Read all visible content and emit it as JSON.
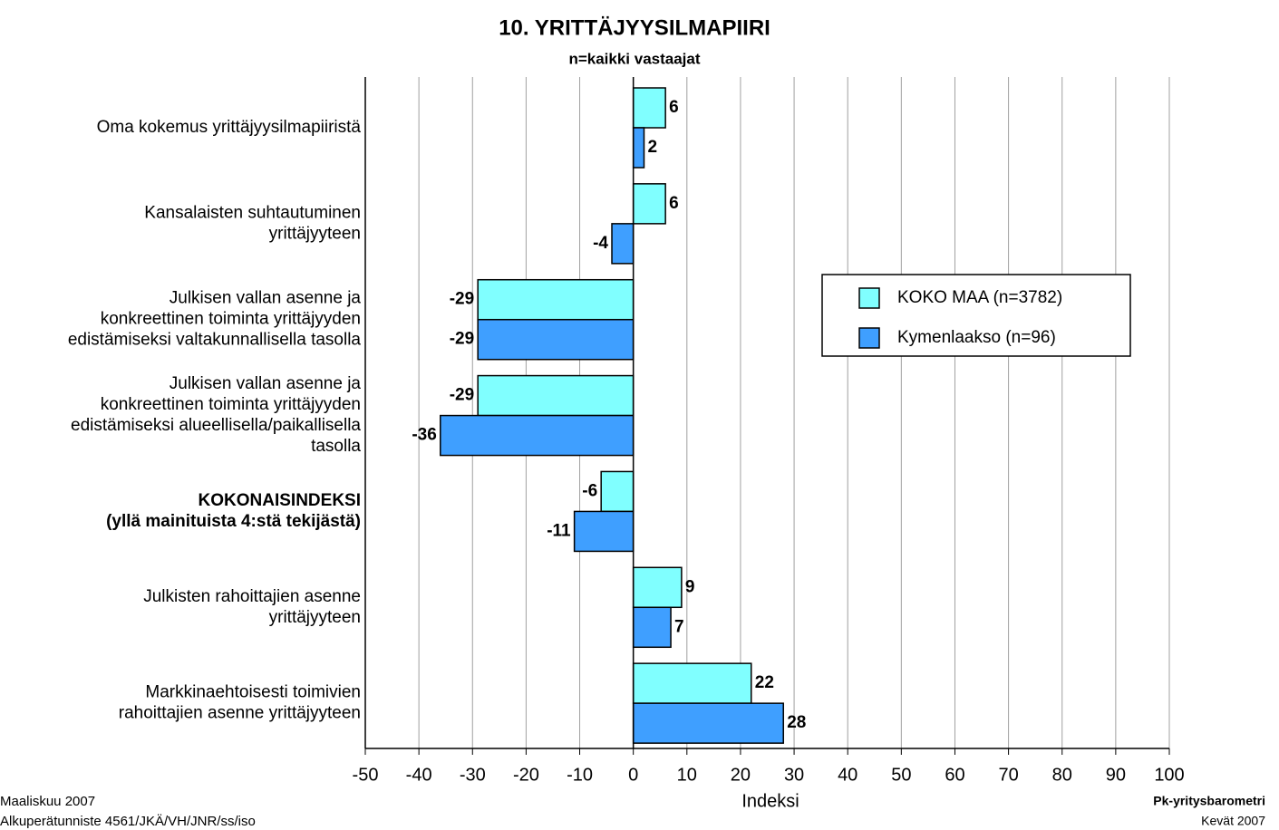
{
  "chart_data": {
    "type": "barh",
    "title": "10. YRITTÄJYYSILMAPIIRI",
    "subtitle": "n=kaikki vastaajat",
    "xlabel": "Indeksi",
    "categories": [
      "Oma kokemus yrittäjyysilmapiiristä",
      "Kansalaisten suhtautuminen\nyrittäjyyteen",
      "Julkisen vallan asenne ja\nkonkreettinen toiminta yrittäjyyden\nedistämiseksi valtakunnallisella tasolla",
      "Julkisen vallan asenne ja\nkonkreettinen toiminta yrittäjyyden\nedistämiseksi alueellisella/paikallisella\ntasolla",
      "KOKONAISINDEKSI\n(yllä mainituista 4:stä tekijästä)",
      "Julkisten rahoittajien asenne\nyrittäjyyteen",
      "Markkinaehtoisesti toimivien\nrahoittajien asenne yrittäjyyteen"
    ],
    "bold_categories": [
      4
    ],
    "series": [
      {
        "name": "KOKO MAA (n=3782)",
        "color": "#80ffff",
        "values": [
          6,
          6,
          -29,
          -29,
          -6,
          9,
          22
        ]
      },
      {
        "name": "Kymenlaakso (n=96)",
        "color": "#3f9fff",
        "values": [
          2,
          -4,
          -29,
          -36,
          -11,
          7,
          28
        ]
      }
    ],
    "xlim": [
      -50,
      100
    ],
    "xticks": [
      -50,
      -40,
      -30,
      -20,
      -10,
      0,
      10,
      20,
      30,
      40,
      50,
      60,
      70,
      80,
      90,
      100
    ],
    "grid": true,
    "legend": "right",
    "footer": {
      "left": [
        "Maaliskuu 2007",
        "Alkuperätunniste 4561/JKÄ/VH/JNR/ss/iso"
      ],
      "right": [
        "Pk-yritysbarometri",
        "Kevät 2007"
      ]
    }
  }
}
